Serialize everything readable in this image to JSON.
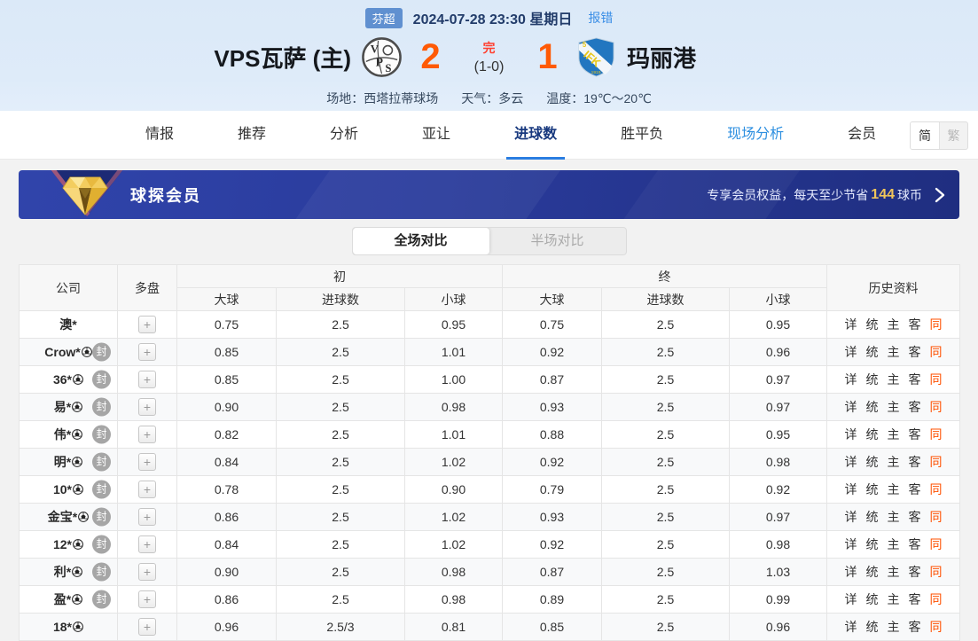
{
  "colors": {
    "accent_blue": "#2a7de1",
    "nav_active": "#17387e",
    "live_blue": "#2d8fe0",
    "score_orange": "#ff5a05",
    "status_red": "#ff4030",
    "league_badge_blue": "#6090d0",
    "banner_blue_start": "#3044ab",
    "banner_blue_end": "#1f2e80",
    "gold": "#f0c55a",
    "seal_gray": "#a6a6a6",
    "accent_orange_link": "#ff5000",
    "header_bg": "#dbe9f8"
  },
  "header": {
    "league": "芬超",
    "datetime": "2024-07-28 23:30 星期日",
    "report_error": "报错",
    "home_name": "VPS瓦萨 (主)",
    "away_name": "玛丽港",
    "score_home": "2",
    "score_away": "1",
    "score_status": "完",
    "score_half": "(1-0)",
    "venue": "场地：西塔拉蒂球场",
    "weather": "天气：多云",
    "temperature": "温度：19℃～20℃"
  },
  "nav": {
    "tabs": [
      {
        "label": "情报"
      },
      {
        "label": "推荐"
      },
      {
        "label": "分析"
      },
      {
        "label": "亚让"
      },
      {
        "label": "进球数"
      },
      {
        "label": "胜平负"
      },
      {
        "label": "现场分析"
      },
      {
        "label": "会员"
      }
    ],
    "lang_simplified": "简",
    "lang_traditional": "繁"
  },
  "banner": {
    "title": "球探会员",
    "promo_prefix": "专享会员权益，每天至少节省",
    "promo_value": "144",
    "promo_suffix": "球币"
  },
  "toggle": {
    "full": "全场对比",
    "half": "半场对比"
  },
  "table": {
    "headers": {
      "company": "公司",
      "multi": "多盘",
      "initial": "初",
      "final": "终",
      "over": "大球",
      "goals": "进球数",
      "under": "小球",
      "history": "历史资料"
    },
    "sealed_label": "封",
    "plus_label": "+",
    "history_links": [
      {
        "key": "detail",
        "label": "详",
        "accent": false
      },
      {
        "key": "stats",
        "label": "统",
        "accent": false
      },
      {
        "key": "home",
        "label": "主",
        "accent": false
      },
      {
        "key": "away",
        "label": "客",
        "accent": false
      },
      {
        "key": "same",
        "label": "同",
        "accent": true
      }
    ],
    "rows": [
      {
        "company": "澳*",
        "ball": false,
        "sealed": false,
        "init": [
          "0.75",
          "2.5",
          "0.95"
        ],
        "final": [
          "0.75",
          "2.5",
          "0.95"
        ]
      },
      {
        "company": "Crow*",
        "ball": true,
        "sealed": true,
        "init": [
          "0.85",
          "2.5",
          "1.01"
        ],
        "final": [
          "0.92",
          "2.5",
          "0.96"
        ]
      },
      {
        "company": "36*",
        "ball": true,
        "sealed": true,
        "init": [
          "0.85",
          "2.5",
          "1.00"
        ],
        "final": [
          "0.87",
          "2.5",
          "0.97"
        ]
      },
      {
        "company": "易*",
        "ball": true,
        "sealed": true,
        "init": [
          "0.90",
          "2.5",
          "0.98"
        ],
        "final": [
          "0.93",
          "2.5",
          "0.97"
        ]
      },
      {
        "company": "伟*",
        "ball": true,
        "sealed": true,
        "init": [
          "0.82",
          "2.5",
          "1.01"
        ],
        "final": [
          "0.88",
          "2.5",
          "0.95"
        ]
      },
      {
        "company": "明*",
        "ball": true,
        "sealed": true,
        "init": [
          "0.84",
          "2.5",
          "1.02"
        ],
        "final": [
          "0.92",
          "2.5",
          "0.98"
        ]
      },
      {
        "company": "10*",
        "ball": true,
        "sealed": true,
        "init": [
          "0.78",
          "2.5",
          "0.90"
        ],
        "final": [
          "0.79",
          "2.5",
          "0.92"
        ]
      },
      {
        "company": "金宝*",
        "ball": true,
        "sealed": true,
        "init": [
          "0.86",
          "2.5",
          "1.02"
        ],
        "final": [
          "0.93",
          "2.5",
          "0.97"
        ]
      },
      {
        "company": "12*",
        "ball": true,
        "sealed": true,
        "init": [
          "0.84",
          "2.5",
          "1.02"
        ],
        "final": [
          "0.92",
          "2.5",
          "0.98"
        ]
      },
      {
        "company": "利*",
        "ball": true,
        "sealed": true,
        "init": [
          "0.90",
          "2.5",
          "0.98"
        ],
        "final": [
          "0.87",
          "2.5",
          "1.03"
        ]
      },
      {
        "company": "盈*",
        "ball": true,
        "sealed": true,
        "init": [
          "0.86",
          "2.5",
          "0.98"
        ],
        "final": [
          "0.89",
          "2.5",
          "0.99"
        ]
      },
      {
        "company": "18*",
        "ball": true,
        "sealed": false,
        "init": [
          "0.96",
          "2.5/3",
          "0.81"
        ],
        "final": [
          "0.85",
          "2.5",
          "0.96"
        ]
      }
    ]
  }
}
